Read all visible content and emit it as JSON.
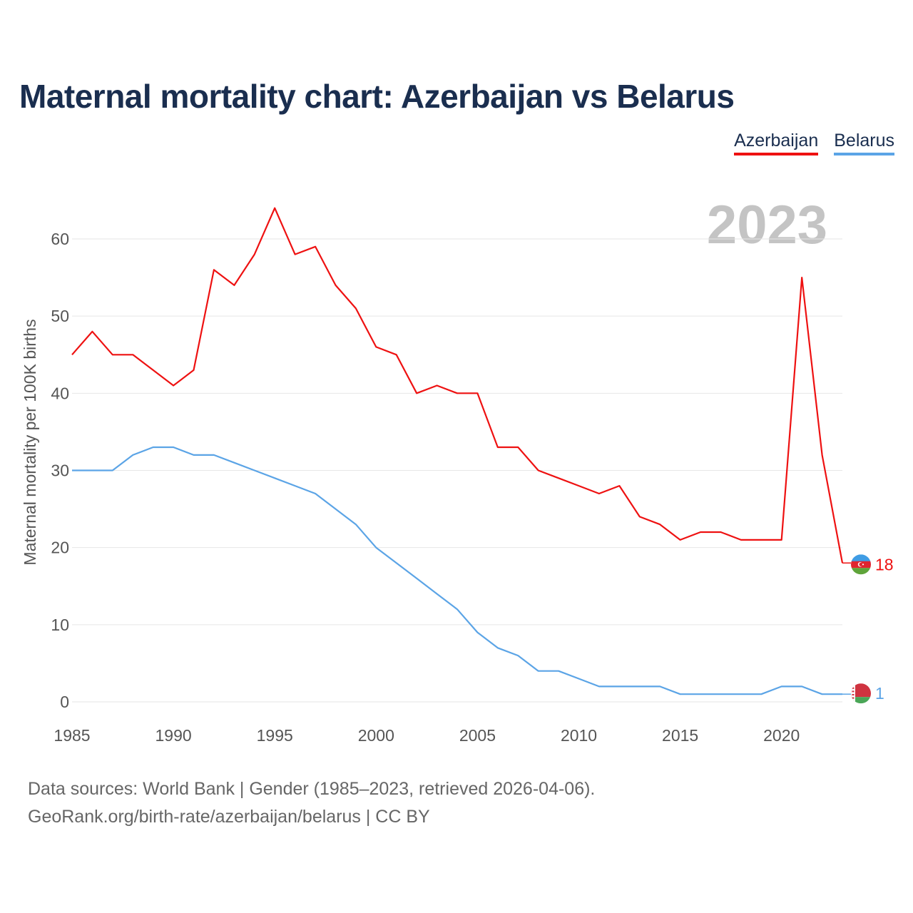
{
  "header": {
    "title": "Maternal mortality chart: Azerbaijan vs Belarus"
  },
  "legend": [
    {
      "label": "Azerbaijan",
      "color": "#ee1111"
    },
    {
      "label": "Belarus",
      "color": "#5ba4e6"
    }
  ],
  "footer": {
    "line1": "Data sources: World Bank | Gender (1985–2023, retrieved 2026-04-06).",
    "line2": "GeoRank.org/birth-rate/azerbaijan/belarus | CC BY"
  },
  "chart_data": {
    "type": "line",
    "title": "Maternal mortality chart: Azerbaijan vs Belarus",
    "xlabel": "",
    "ylabel": "Maternal mortality per 100K births",
    "year_label": "2023",
    "xlim": [
      1985,
      2023
    ],
    "ylim": [
      0,
      65
    ],
    "x_ticks": [
      1985,
      1990,
      1995,
      2000,
      2005,
      2010,
      2015,
      2020
    ],
    "y_ticks": [
      0,
      10,
      20,
      30,
      40,
      50,
      60
    ],
    "grid": true,
    "x": [
      1985,
      1986,
      1987,
      1988,
      1989,
      1990,
      1991,
      1992,
      1993,
      1994,
      1995,
      1996,
      1997,
      1998,
      1999,
      2000,
      2001,
      2002,
      2003,
      2004,
      2005,
      2006,
      2007,
      2008,
      2009,
      2010,
      2011,
      2012,
      2013,
      2014,
      2015,
      2016,
      2017,
      2018,
      2019,
      2020,
      2021,
      2022,
      2023
    ],
    "series": [
      {
        "name": "Azerbaijan",
        "color": "#ee1111",
        "end_label": "18",
        "flag": "azerbaijan-flag",
        "values": [
          45,
          48,
          45,
          45,
          43,
          41,
          43,
          56,
          54,
          58,
          64,
          58,
          59,
          54,
          51,
          46,
          45,
          40,
          41,
          40,
          40,
          33,
          33,
          30,
          29,
          28,
          27,
          28,
          24,
          23,
          21,
          22,
          22,
          21,
          21,
          21,
          55,
          32,
          18
        ]
      },
      {
        "name": "Belarus",
        "color": "#5ba4e6",
        "end_label": "1",
        "flag": "belarus-flag",
        "values": [
          30,
          30,
          30,
          32,
          33,
          33,
          32,
          32,
          31,
          30,
          29,
          28,
          27,
          25,
          23,
          20,
          18,
          16,
          14,
          12,
          9,
          7,
          6,
          4,
          4,
          3,
          2,
          2,
          2,
          2,
          1,
          1,
          1,
          1,
          1,
          2,
          2,
          1,
          1
        ]
      }
    ]
  }
}
